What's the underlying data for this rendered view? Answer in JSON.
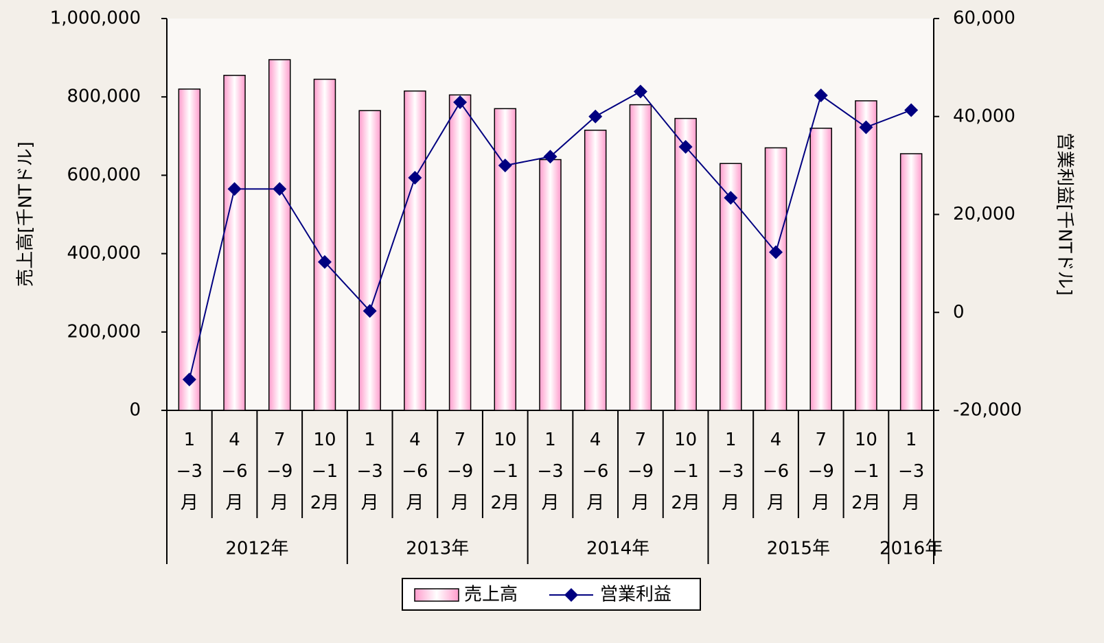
{
  "chart_data": {
    "type": "bar_line",
    "y_label": "売上高[千NTドル]",
    "y2_label": "営業利益[千NTドル]",
    "categories": [
      "1−3月",
      "4−6月",
      "7−9月",
      "10−12月",
      "1−3月",
      "4−6月",
      "7−9月",
      "10−12月",
      "1−3月",
      "4−6月",
      "7−9月",
      "10−12月",
      "1−3月",
      "4−6月",
      "7−9月",
      "10−12月",
      "1−3月"
    ],
    "groups": [
      {
        "label": "2012年",
        "count": 4
      },
      {
        "label": "2013年",
        "count": 4
      },
      {
        "label": "2014年",
        "count": 4
      },
      {
        "label": "2015年",
        "count": 4
      },
      {
        "label": "2016年",
        "count": 1
      }
    ],
    "series": [
      {
        "name": "売上高",
        "type": "bar",
        "color": "#ff9ccc",
        "values": [
          820000,
          855000,
          895000,
          845000,
          765000,
          815000,
          805000,
          770000,
          640000,
          715000,
          780000,
          745000,
          630000,
          670000,
          720000,
          790000,
          655000
        ]
      },
      {
        "name": "営業利益",
        "type": "line",
        "axis": "y2",
        "color": "#000080",
        "values": [
          -13700,
          25200,
          25200,
          10300,
          300,
          27500,
          42900,
          30000,
          31800,
          40000,
          45100,
          33800,
          23400,
          12300,
          44300,
          37800,
          41300
        ]
      }
    ],
    "ylim": [
      0,
      1000000
    ],
    "yticks": [
      0,
      {
        "value": 200000,
        "label": "200,000"
      },
      {
        "value": 400000,
        "label": "400,000"
      },
      {
        "value": 600000,
        "label": "600,000"
      },
      {
        "value": 800000,
        "label": "800,000"
      },
      {
        "value": 1000000,
        "label": "1,000,000"
      }
    ],
    "y2lim": [
      -20000,
      60000
    ],
    "y2ticks": [
      {
        "value": -20000,
        "label": "-20,000"
      },
      0,
      {
        "value": 20000,
        "label": "20,000"
      },
      {
        "value": 40000,
        "label": "40,000"
      },
      {
        "value": 60000,
        "label": "60,000"
      }
    ],
    "legend": "bottom"
  }
}
